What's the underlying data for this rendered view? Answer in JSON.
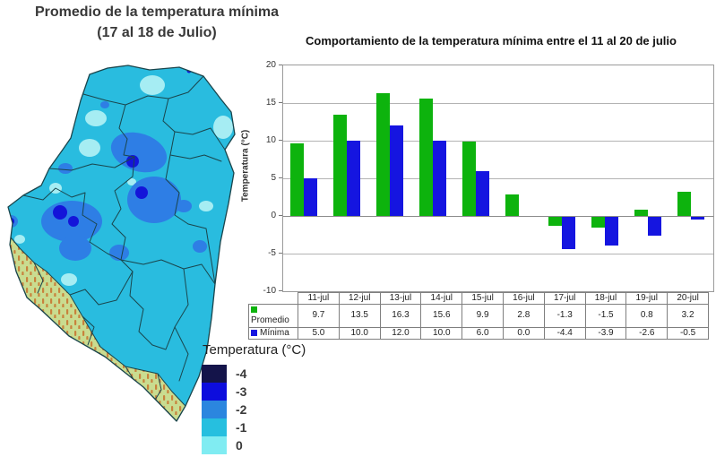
{
  "map_panel": {
    "title_line1": "Promedio de la temperatura mínima",
    "title_line2": "(17 al 18 de Julio)",
    "legend_title": "Temperatura (°C)",
    "legend_entries": [
      {
        "label": "-4",
        "color": "#14144a"
      },
      {
        "label": "-3",
        "color": "#0d0ddd"
      },
      {
        "label": "-2",
        "color": "#2b86df"
      },
      {
        "label": "-1",
        "color": "#26bfdf"
      },
      {
        "label": "0",
        "color": "#80ecf2"
      }
    ],
    "map_colors": {
      "base": "#29bcdf",
      "light_patch": "#a6edf3",
      "cold_patch": "#2e7ee5",
      "coldest_dot": "#1414d9",
      "no_data_fill": "#c9dc90",
      "no_data_hatch": "#c8823c",
      "border": "#1a454c"
    }
  },
  "chart": {
    "title": "Comportamiento de la temperatura mínima entre el 11 al 20 de julio",
    "ylabel": "Temperatura (°C)"
  },
  "chart_data": {
    "type": "bar",
    "title": "Comportamiento de la temperatura mínima entre el 11 al 20 de julio",
    "xlabel": "",
    "ylabel": "Temperatura (°C)",
    "categories": [
      "11-jul",
      "12-jul",
      "13-jul",
      "14-jul",
      "15-jul",
      "16-jul",
      "17-jul",
      "18-jul",
      "19-jul",
      "20-jul"
    ],
    "series": [
      {
        "name": "Promedio",
        "color": "#0db30d",
        "values": [
          9.7,
          13.5,
          16.3,
          15.6,
          9.9,
          2.8,
          -1.3,
          -1.5,
          0.8,
          3.2
        ]
      },
      {
        "name": "Mínima",
        "color": "#1515e0",
        "values": [
          5.0,
          10.0,
          12.0,
          10.0,
          6.0,
          0.0,
          -4.4,
          -3.9,
          -2.6,
          -0.5
        ]
      }
    ],
    "ylim": [
      -10,
      20
    ],
    "ytick_step": 5,
    "yticks": [
      20,
      15,
      10,
      5,
      0,
      -5,
      -10
    ],
    "grid": true,
    "legend_position": "table-left",
    "data_table_shown": true
  }
}
